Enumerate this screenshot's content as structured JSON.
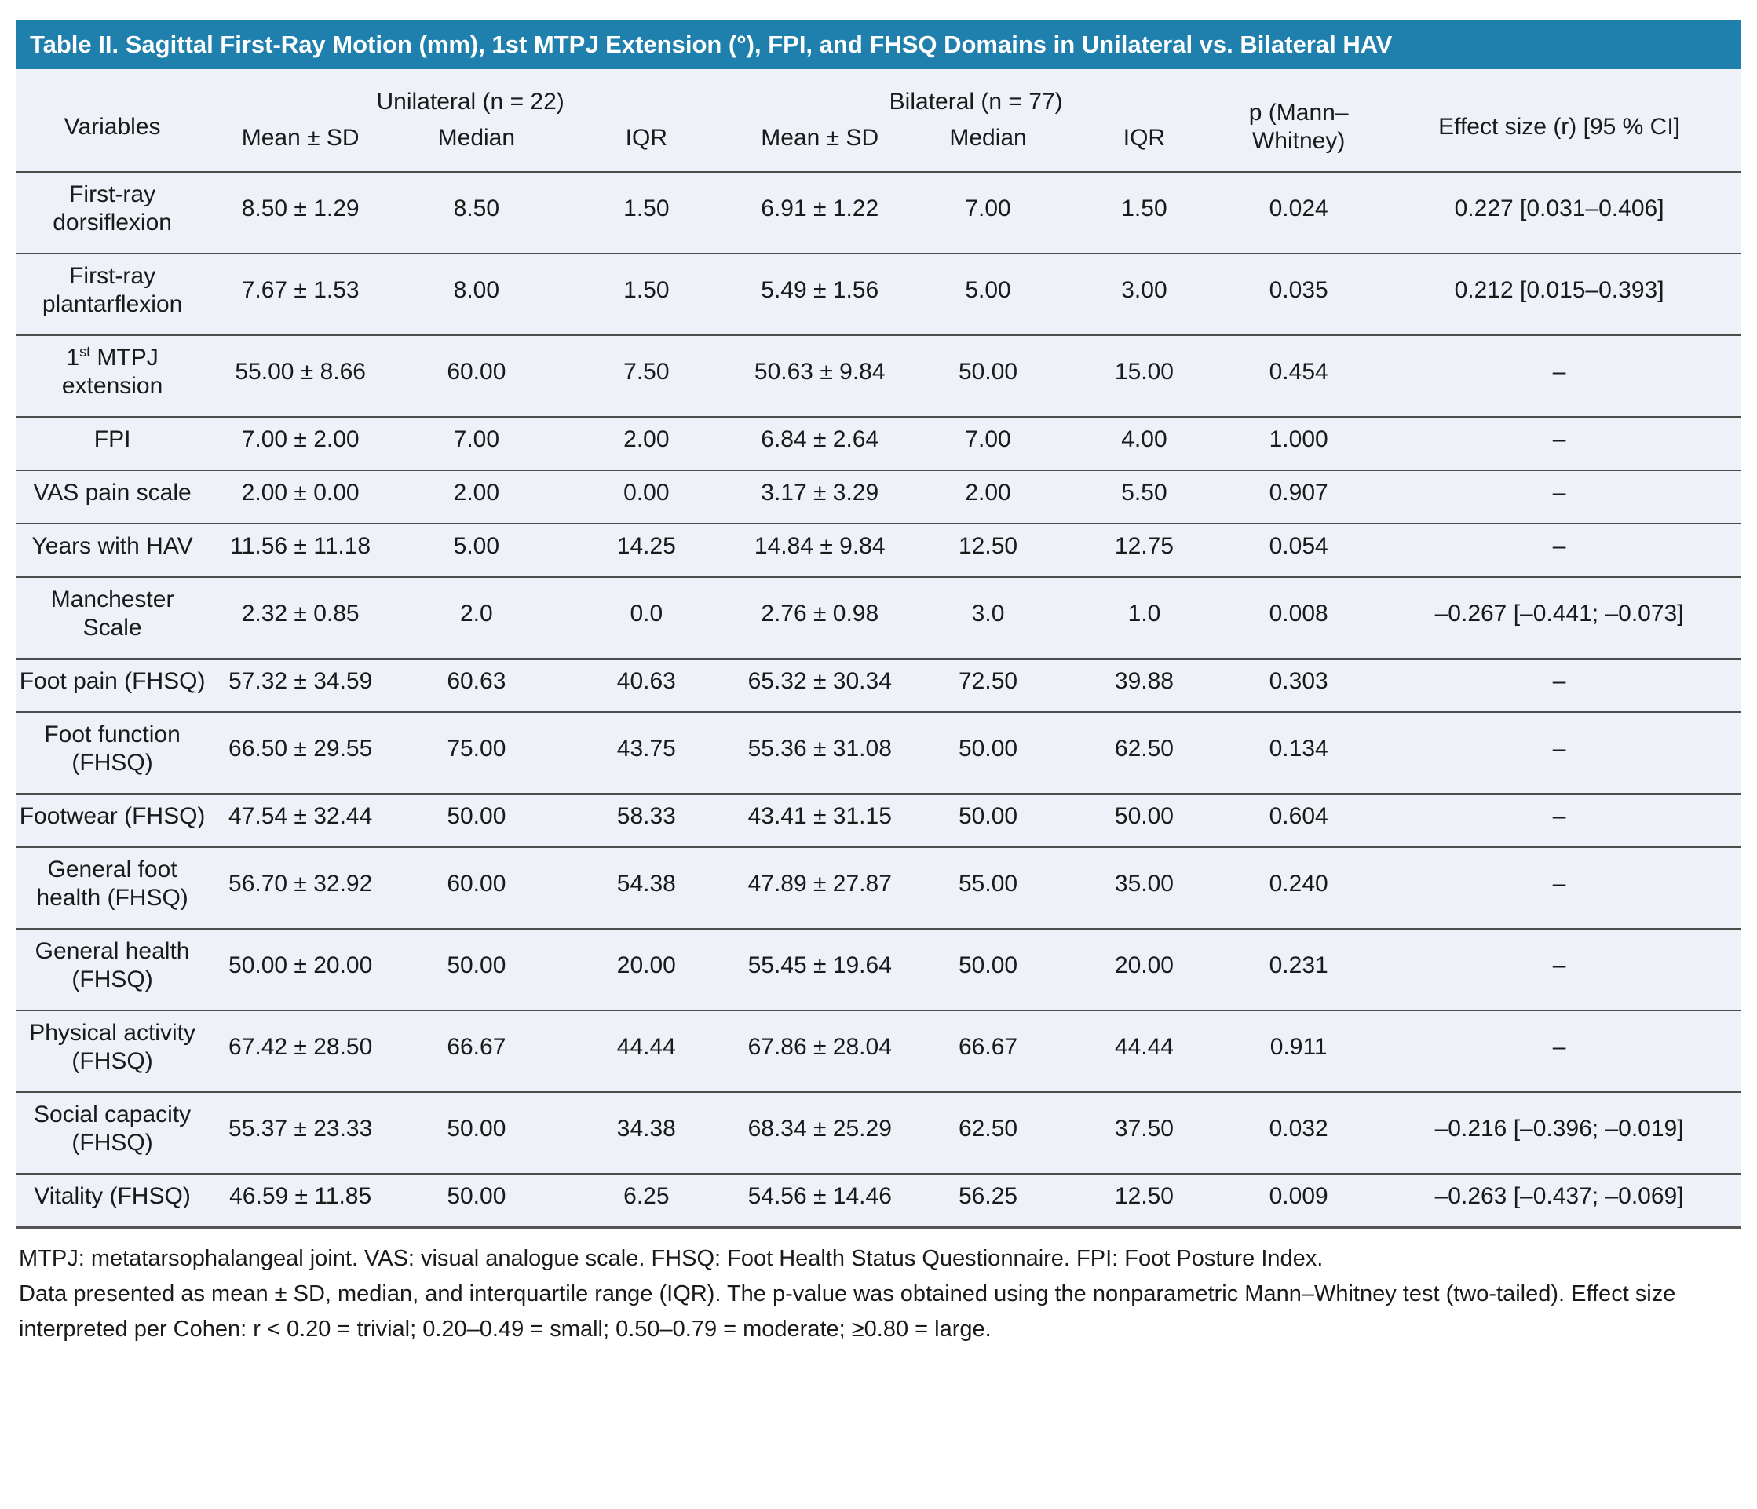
{
  "title": "Table II. Sagittal First-Ray Motion (mm), 1st MTPJ Extension (°), FPI, and FHSQ Domains in Unilateral vs. Bilateral HAV",
  "colors": {
    "title_bar_blue": "#1f7fad",
    "title_text": "#ffffff",
    "table_background": "#eef1f8",
    "row_line": "#4c4c4c",
    "body_text": "#1a1a1a"
  },
  "table": {
    "header": {
      "variables": "Variables",
      "group_unilateral": "Unilateral (n = 22)",
      "group_bilateral": "Bilateral (n = 77)",
      "subheaders": [
        "Mean ± SD",
        "Median",
        "IQR"
      ],
      "p_label": "p (Mann–Whitney)",
      "effect_label": "Effect size (r) [95 % CI]"
    },
    "rows": [
      {
        "variable": "First-ray dorsiflexion",
        "unilateral": [
          "8.50 ± 1.29",
          "8.50",
          "1.50"
        ],
        "bilateral": [
          "6.91 ± 1.22",
          "7.00",
          "1.50"
        ],
        "p": "0.024",
        "p_bold": true,
        "effect": "0.227 [0.031–0.406]"
      },
      {
        "variable": "First-ray plantarflexion",
        "unilateral": [
          "7.67 ± 1.53",
          "8.00",
          "1.50"
        ],
        "bilateral": [
          "5.49 ± 1.56",
          "5.00",
          "3.00"
        ],
        "p": "0.035",
        "p_bold": true,
        "effect": "0.212 [0.015–0.393]"
      },
      {
        "variable": "1st MTPJ extension",
        "unilateral": [
          "55.00 ± 8.66",
          "60.00",
          "7.50"
        ],
        "bilateral": [
          "50.63 ± 9.84",
          "50.00",
          "15.00"
        ],
        "p": "0.454",
        "p_bold": false,
        "effect": "–"
      },
      {
        "variable": "FPI",
        "unilateral": [
          "7.00 ± 2.00",
          "7.00",
          "2.00"
        ],
        "bilateral": [
          "6.84 ± 2.64",
          "7.00",
          "4.00"
        ],
        "p": "1.000",
        "p_bold": false,
        "effect": "–"
      },
      {
        "variable": "VAS pain scale",
        "unilateral": [
          "2.00 ± 0.00",
          "2.00",
          "0.00"
        ],
        "bilateral": [
          "3.17 ± 3.29",
          "2.00",
          "5.50"
        ],
        "p": "0.907",
        "p_bold": false,
        "effect": "–"
      },
      {
        "variable": "Years with HAV",
        "unilateral": [
          "11.56 ± 11.18",
          "5.00",
          "14.25"
        ],
        "bilateral": [
          "14.84 ± 9.84",
          "12.50",
          "12.75"
        ],
        "p": "0.054",
        "p_bold": false,
        "effect": "–"
      },
      {
        "variable": "Manchester Scale",
        "unilateral": [
          "2.32 ± 0.85",
          "2.0",
          "0.0"
        ],
        "bilateral": [
          "2.76 ± 0.98",
          "3.0",
          "1.0"
        ],
        "p": "0.008",
        "p_bold": true,
        "effect": "–0.267 [–0.441; –0.073]"
      },
      {
        "variable": "Foot pain (FHSQ)",
        "unilateral": [
          "57.32 ± 34.59",
          "60.63",
          "40.63"
        ],
        "bilateral": [
          "65.32 ± 30.34",
          "72.50",
          "39.88"
        ],
        "p": "0.303",
        "p_bold": false,
        "effect": "–"
      },
      {
        "variable": "Foot function (FHSQ)",
        "unilateral": [
          "66.50 ± 29.55",
          "75.00",
          "43.75"
        ],
        "bilateral": [
          "55.36 ± 31.08",
          "50.00",
          "62.50"
        ],
        "p": "0.134",
        "p_bold": false,
        "effect": "–"
      },
      {
        "variable": "Footwear (FHSQ)",
        "unilateral": [
          "47.54 ± 32.44",
          "50.00",
          "58.33"
        ],
        "bilateral": [
          "43.41 ± 31.15",
          "50.00",
          "50.00"
        ],
        "p": "0.604",
        "p_bold": false,
        "effect": "–"
      },
      {
        "variable": "General foot health (FHSQ)",
        "unilateral": [
          "56.70 ± 32.92",
          "60.00",
          "54.38"
        ],
        "bilateral": [
          "47.89 ± 27.87",
          "55.00",
          "35.00"
        ],
        "p": "0.240",
        "p_bold": false,
        "effect": "–"
      },
      {
        "variable": "General health (FHSQ)",
        "unilateral": [
          "50.00 ± 20.00",
          "50.00",
          "20.00"
        ],
        "bilateral": [
          "55.45 ± 19.64",
          "50.00",
          "20.00"
        ],
        "p": "0.231",
        "p_bold": false,
        "effect": "–"
      },
      {
        "variable": "Physical activity (FHSQ)",
        "unilateral": [
          "67.42 ± 28.50",
          "66.67",
          "44.44"
        ],
        "bilateral": [
          "67.86 ± 28.04",
          "66.67",
          "44.44"
        ],
        "p": "0.911",
        "p_bold": false,
        "effect": "–"
      },
      {
        "variable": "Social capacity (FHSQ)",
        "unilateral": [
          "55.37 ± 23.33",
          "50.00",
          "34.38"
        ],
        "bilateral": [
          "68.34 ± 25.29",
          "62.50",
          "37.50"
        ],
        "p": "0.032",
        "p_bold": true,
        "effect": "–0.216 [–0.396; –0.019]"
      },
      {
        "variable": "Vitality (FHSQ)",
        "unilateral": [
          "46.59 ± 11.85",
          "50.00",
          "6.25"
        ],
        "bilateral": [
          "54.56 ± 14.46",
          "56.25",
          "12.50"
        ],
        "p": "0.009",
        "p_bold": true,
        "effect": "–0.263 [–0.437; –0.069]"
      }
    ]
  },
  "footnotes": [
    "MTPJ: metatarsophalangeal joint. VAS: visual analogue scale. FHSQ: Foot Health Status Questionnaire. FPI: Foot Posture Index.",
    "Data presented as mean ± SD, median, and interquartile range (IQR). The p-value was obtained using the nonparametric Mann–Whitney test (two-tailed). Effect size interpreted per Cohen: r < 0.20 = trivial; 0.20–0.49 = small; 0.50–0.79 = moderate; ≥0.80 = large."
  ]
}
